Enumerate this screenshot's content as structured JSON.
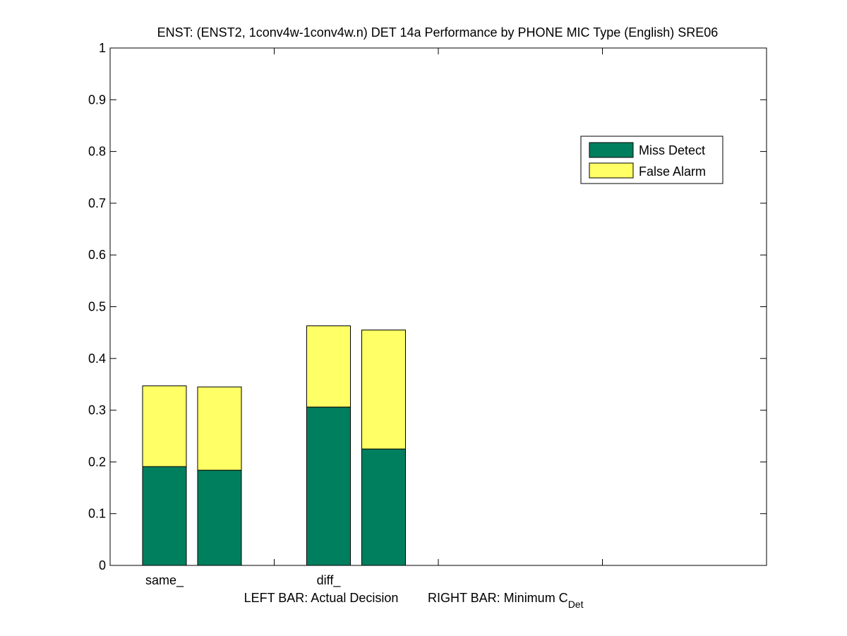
{
  "chart_data": {
    "type": "bar",
    "stacked": true,
    "title": "ENST: (ENST2, 1conv4w-1conv4w.n) DET 14a Performance by PHONE MIC Type (English) SRE06",
    "xlabel": {
      "left": "LEFT BAR: Actual Decision",
      "right": "RIGHT BAR: Minimum C",
      "right_subscript": "Det"
    },
    "ylabel": "",
    "ylim": [
      0,
      1
    ],
    "yticks": [
      "0",
      "0.1",
      "0.2",
      "0.3",
      "0.4",
      "0.5",
      "0.6",
      "0.7",
      "0.8",
      "0.9",
      "1"
    ],
    "categories": [
      "same_",
      "diff_"
    ],
    "groups": [
      {
        "category": "same_",
        "bars": [
          {
            "role": "Actual Decision",
            "miss": 0.191,
            "false_alarm": 0.156
          },
          {
            "role": "Minimum CDet",
            "miss": 0.184,
            "false_alarm": 0.161
          }
        ]
      },
      {
        "category": "diff_",
        "bars": [
          {
            "role": "Actual Decision",
            "miss": 0.306,
            "false_alarm": 0.157
          },
          {
            "role": "Minimum CDet",
            "miss": 0.225,
            "false_alarm": 0.23
          }
        ]
      }
    ],
    "series": [
      {
        "name": "Miss Detect",
        "color": "#007f5f"
      },
      {
        "name": "False Alarm",
        "color": "#ffff66"
      }
    ],
    "legend": {
      "placement": "top-right"
    },
    "grid": false
  }
}
